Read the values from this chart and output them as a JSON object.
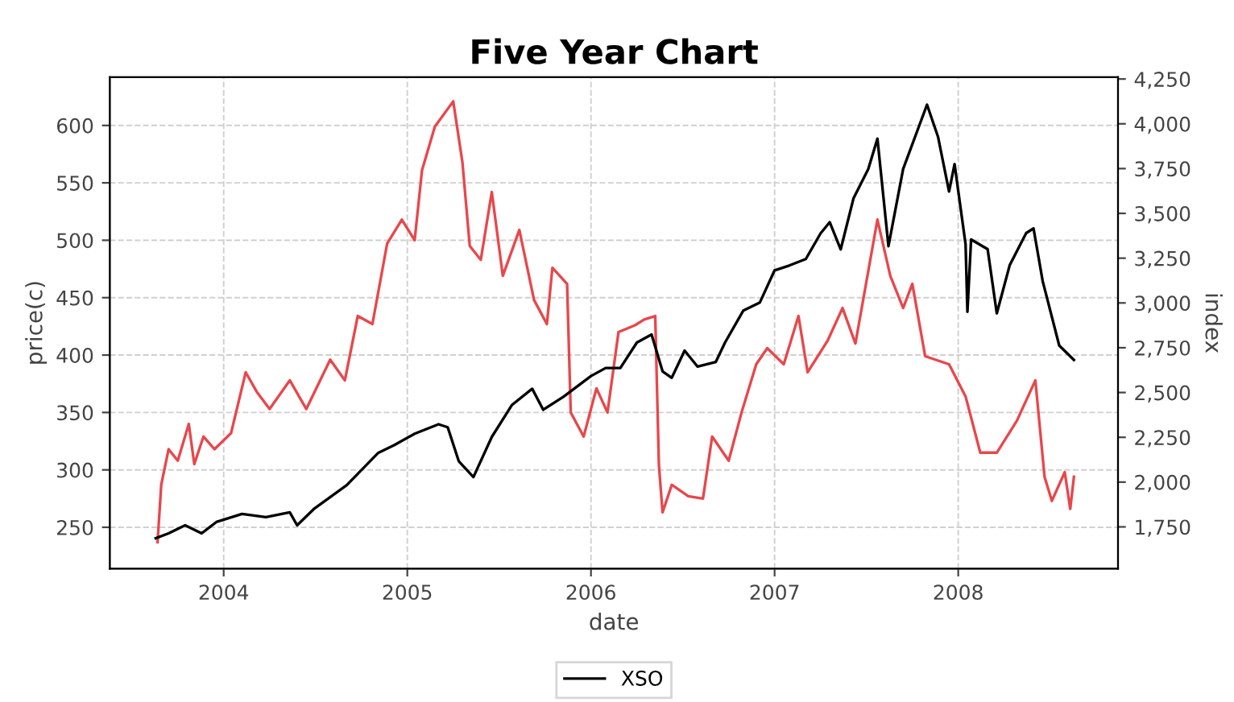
{
  "chart_data": {
    "type": "line",
    "title": "Five Year Chart",
    "xlabel": "date",
    "ylabel": "price(c)",
    "y2label": "index",
    "xlim": [
      2003.38,
      2008.87
    ],
    "xticks": [
      2004,
      2005,
      2006,
      2007,
      2008
    ],
    "ylim": [
      214,
      642
    ],
    "yticks": [
      250,
      300,
      350,
      400,
      450,
      500,
      550,
      600
    ],
    "y2lim": [
      1517,
      4260
    ],
    "y2ticks": [
      {
        "value": 1750,
        "label": "1,750"
      },
      {
        "value": 2000,
        "label": "2,000"
      },
      {
        "value": 2250,
        "label": "2,250"
      },
      {
        "value": 2500,
        "label": "2,500"
      },
      {
        "value": 2750,
        "label": "2,750"
      },
      {
        "value": 3000,
        "label": "3,000"
      },
      {
        "value": 3250,
        "label": "3,250"
      },
      {
        "value": 3500,
        "label": "3,500"
      },
      {
        "value": 3750,
        "label": "3,750"
      },
      {
        "value": 4000,
        "label": "4,000"
      },
      {
        "value": 4250,
        "label": "4,250"
      }
    ],
    "grid": true,
    "legend": "bottom",
    "marker": "none",
    "line_style": "solid",
    "series": [
      {
        "color": "#e8474b",
        "x": [
          2003.64,
          2003.66,
          2003.7,
          2003.75,
          2003.81,
          2003.84,
          2003.89,
          2003.95,
          2004.04,
          2004.12,
          2004.18,
          2004.25,
          2004.36,
          2004.45,
          2004.58,
          2004.66,
          2004.73,
          2004.81,
          2004.89,
          2004.97,
          2005.04,
          2005.08,
          2005.15,
          2005.25,
          2005.3,
          2005.34,
          2005.4,
          2005.46,
          2005.52,
          2005.61,
          2005.69,
          2005.76,
          2005.79,
          2005.87,
          2005.89,
          2005.96,
          2006.03,
          2006.09,
          2006.15,
          2006.24,
          2006.29,
          2006.35,
          2006.37,
          2006.39,
          2006.44,
          2006.53,
          2006.61,
          2006.66,
          2006.75,
          2006.82,
          2006.9,
          2006.96,
          2007.05,
          2007.13,
          2007.18,
          2007.29,
          2007.37,
          2007.44,
          2007.56,
          2007.63,
          2007.7,
          2007.75,
          2007.82,
          2007.95,
          2008.04,
          2008.12,
          2008.21,
          2008.32,
          2008.42,
          2008.47,
          2008.51,
          2008.58,
          2008.61,
          2008.63
        ],
        "values": [
          237,
          287,
          318,
          308,
          340,
          305,
          329,
          318,
          332,
          385,
          368,
          353,
          378,
          353,
          396,
          378,
          434,
          427,
          497,
          518,
          500,
          561,
          599,
          621,
          568,
          495,
          483,
          542,
          469,
          509,
          448,
          427,
          476,
          462,
          350,
          329,
          371,
          350,
          420,
          426,
          431,
          434,
          304,
          263,
          287,
          277,
          275,
          329,
          308,
          350,
          392,
          406,
          392,
          434,
          385,
          413,
          441,
          410,
          518,
          469,
          441,
          462,
          399,
          392,
          364,
          315,
          315,
          343,
          378,
          294,
          273,
          298,
          266,
          294
        ]
      },
      {
        "name": "XSO",
        "color": "#000000",
        "x": [
          2003.63,
          2003.7,
          2003.79,
          2003.88,
          2003.96,
          2004.1,
          2004.23,
          2004.36,
          2004.4,
          2004.49,
          2004.67,
          2004.84,
          2004.93,
          2005.04,
          2005.17,
          2005.22,
          2005.28,
          2005.36,
          2005.46,
          2005.57,
          2005.68,
          2005.74,
          2005.85,
          2006.0,
          2006.08,
          2006.16,
          2006.25,
          2006.33,
          2006.39,
          2006.44,
          2006.51,
          2006.58,
          2006.68,
          2006.73,
          2006.83,
          2006.92,
          2007.0,
          2007.08,
          2007.17,
          2007.25,
          2007.3,
          2007.36,
          2007.43,
          2007.51,
          2007.56,
          2007.62,
          2007.7,
          2007.83,
          2007.89,
          2007.95,
          2007.98,
          2008.04,
          2008.05,
          2008.07,
          2008.16,
          2008.21,
          2008.28,
          2008.37,
          2008.41,
          2008.46,
          2008.55,
          2008.63
        ],
        "values": [
          1687,
          1714,
          1759,
          1714,
          1777,
          1822,
          1804,
          1831,
          1759,
          1849,
          1983,
          2162,
          2207,
          2270,
          2323,
          2306,
          2117,
          2028,
          2252,
          2431,
          2521,
          2404,
          2476,
          2592,
          2637,
          2637,
          2779,
          2824,
          2618,
          2582,
          2734,
          2645,
          2671,
          2779,
          2958,
          3003,
          3182,
          3209,
          3245,
          3388,
          3451,
          3299,
          3585,
          3747,
          3917,
          3317,
          3748,
          4107,
          3927,
          3622,
          3775,
          3327,
          2951,
          3354,
          3300,
          2942,
          3210,
          3390,
          3416,
          3121,
          2762,
          2682
        ],
        "axis": "y2"
      }
    ]
  }
}
